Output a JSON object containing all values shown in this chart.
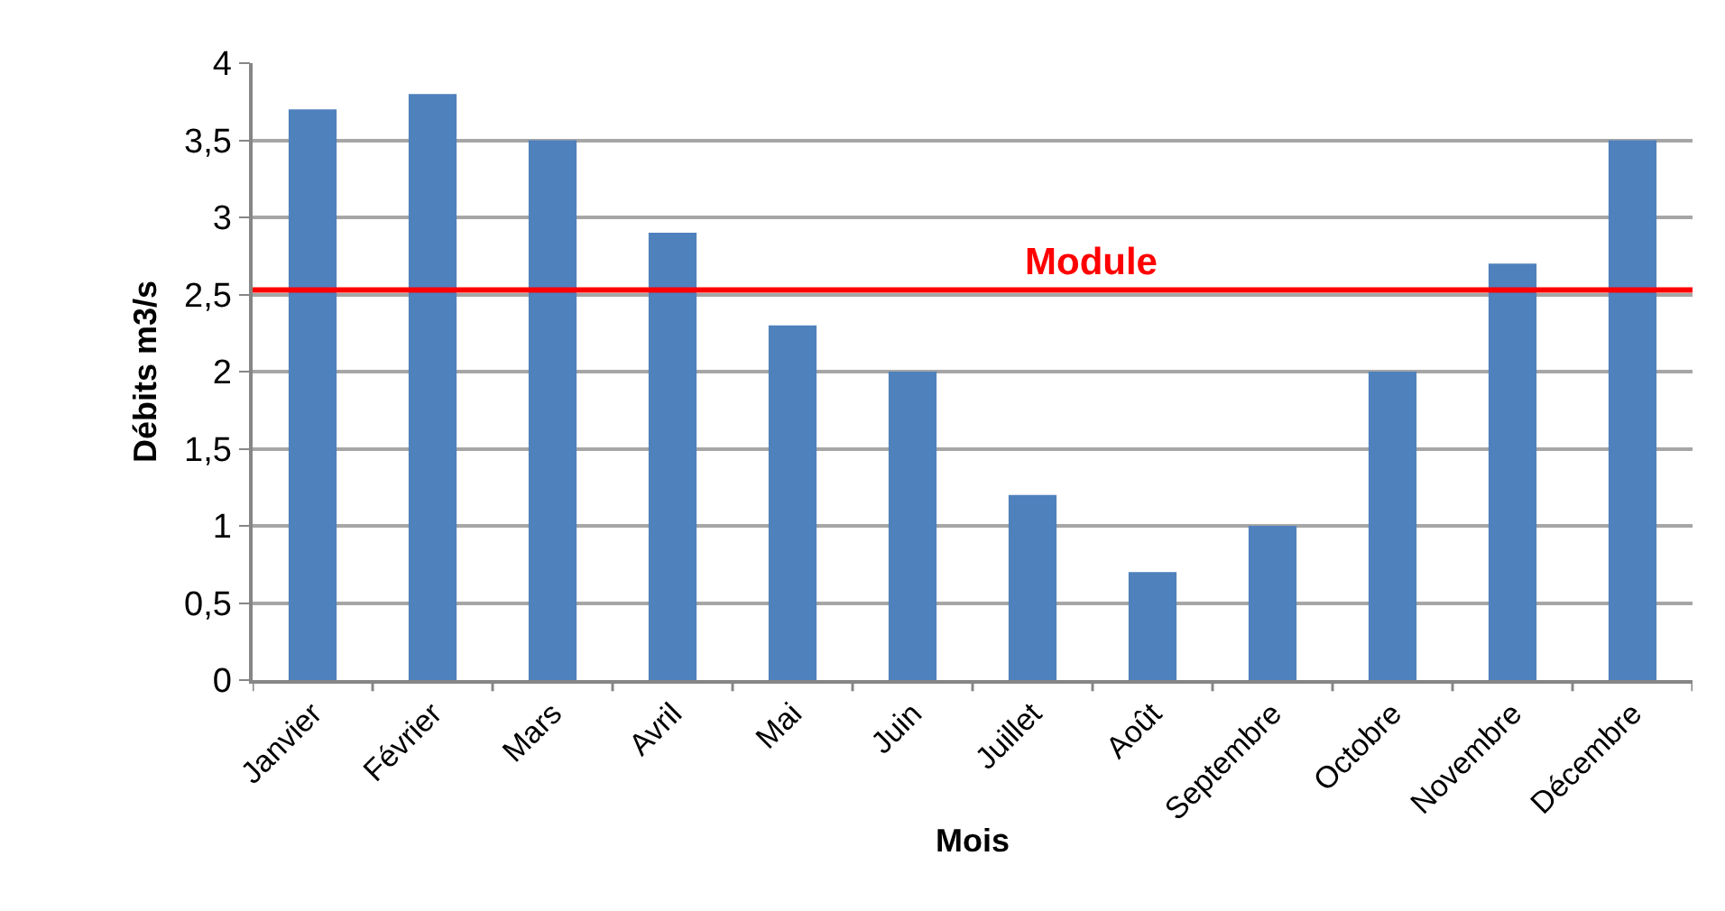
{
  "chart_data": {
    "type": "bar",
    "xlabel": "Mois",
    "ylabel": "Débits m3/s",
    "categories": [
      "Janvier",
      "Février",
      "Mars",
      "Avril",
      "Mai",
      "Juin",
      "Juillet",
      "Août",
      "Septembre",
      "Octobre",
      "Novembre",
      "Décembre"
    ],
    "values": [
      3.7,
      3.8,
      3.5,
      2.9,
      2.3,
      2.0,
      1.2,
      0.7,
      1.0,
      2.0,
      2.7,
      3.5
    ],
    "color": "#4f81bd",
    "ylim": [
      0,
      4
    ],
    "yticks": [
      0,
      {
        "value": 0.5,
        "label": "0,5"
      },
      1,
      {
        "value": 1.5,
        "label": "1,5"
      },
      2,
      {
        "value": 2.5,
        "label": "2,5"
      },
      3,
      {
        "value": 3.5,
        "label": "3,5"
      },
      4
    ],
    "grid": "y",
    "ref_lines": [
      {
        "axis": "y",
        "value": 2.53,
        "label": "Module",
        "color": "#ff0000"
      }
    ]
  }
}
